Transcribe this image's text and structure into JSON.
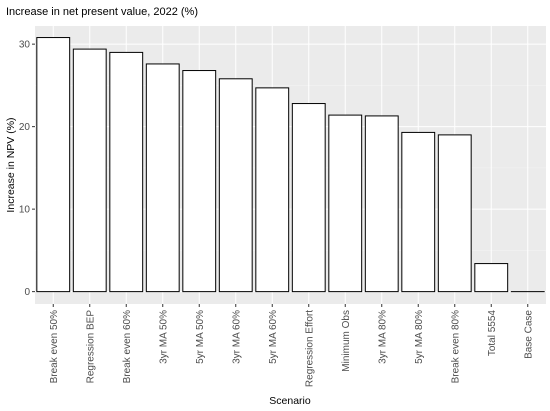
{
  "chart_data": {
    "type": "bar",
    "title": "Increase in net present value, 2022 (%)",
    "xlabel": "Scenario",
    "ylabel": "Increase in NPV (%)",
    "categories": [
      "Break even 50%",
      "Regression BEP",
      "Break even 60%",
      "3yr MA 50%",
      "5yr MA 50%",
      "3yr MA 60%",
      "5yr MA 60%",
      "Regression Effort",
      "Minimum Obs",
      "3yr MA 80%",
      "5yr MA 80%",
      "Break even 80%",
      "Total 5554",
      "Base Case"
    ],
    "values": [
      30.8,
      29.4,
      29.0,
      27.6,
      26.8,
      25.8,
      24.7,
      22.8,
      21.4,
      21.3,
      19.3,
      19.0,
      3.4,
      0
    ],
    "ylim": [
      -1.5,
      32.2
    ],
    "yticks": [
      0,
      10,
      20,
      30
    ],
    "grid": true,
    "colors": {
      "panel_background": "#ebebeb",
      "bar_fill": "#ffffff",
      "bar_outline": "#000000"
    }
  }
}
